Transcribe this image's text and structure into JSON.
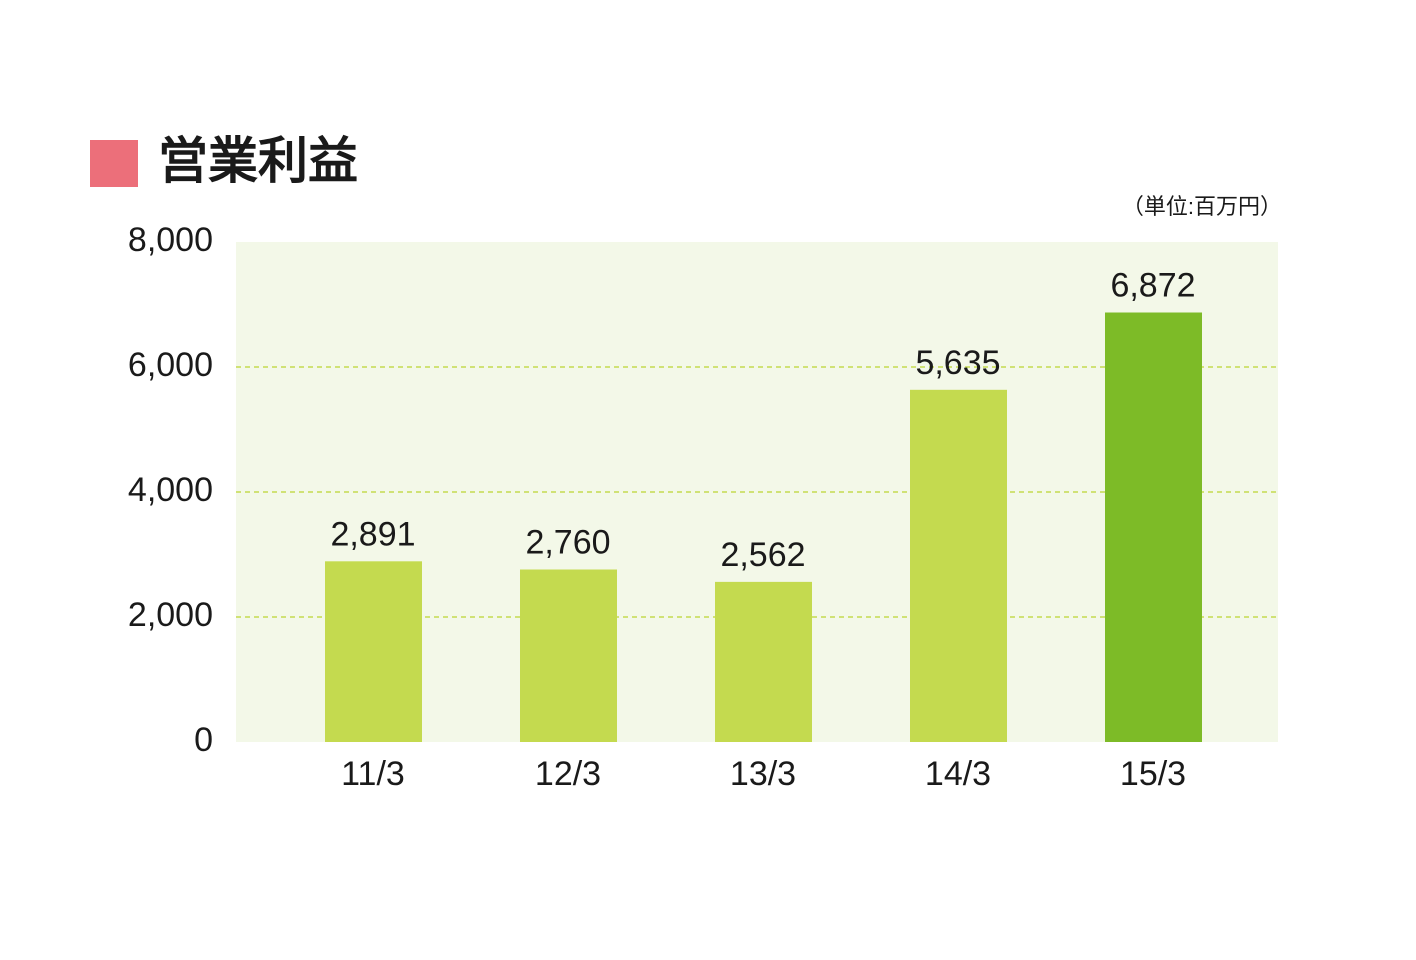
{
  "chart_data": {
    "type": "bar",
    "title": "営業利益",
    "subtitle": "（単位:百万円）",
    "categories": [
      "11/3",
      "12/3",
      "13/3",
      "14/3",
      "15/3"
    ],
    "values": [
      2891,
      2760,
      2562,
      5635,
      6872
    ],
    "value_labels": [
      "2,891",
      "2,760",
      "2,562",
      "5,635",
      "6,872"
    ],
    "colors": [
      "#c4da4f",
      "#c4da4f",
      "#c4da4f",
      "#c4da4f",
      "#7dbb27"
    ],
    "ylim": [
      0,
      8000
    ],
    "yticks": [
      0,
      {
        "value": 2000,
        "label": "2,000"
      },
      {
        "value": 4000,
        "label": "4,000"
      },
      {
        "value": 6000,
        "label": "6,000"
      },
      {
        "value": 8000,
        "label": "8,000"
      }
    ],
    "grid": true
  }
}
